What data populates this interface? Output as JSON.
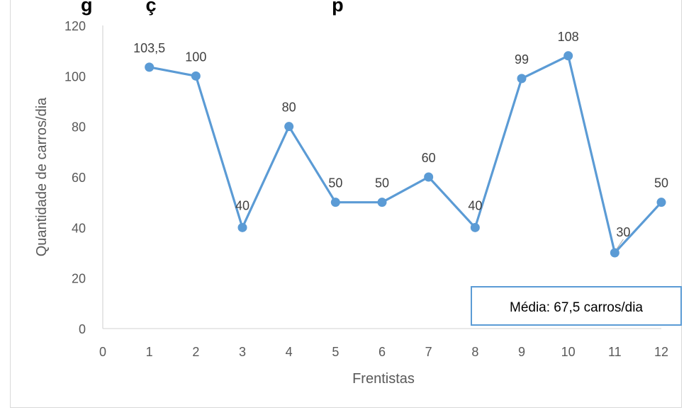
{
  "chart_data": {
    "type": "line",
    "title": "g          ç                                 p",
    "xlabel": "Frentistas",
    "ylabel": "Quantidade de carros/dia",
    "xlim": [
      0,
      12
    ],
    "ylim": [
      0,
      120
    ],
    "x_ticks": [
      "0",
      "1",
      "2",
      "3",
      "4",
      "5",
      "6",
      "7",
      "8",
      "9",
      "10",
      "11",
      "12"
    ],
    "y_ticks": [
      "0",
      "20",
      "40",
      "60",
      "80",
      "100",
      "120"
    ],
    "grid": false,
    "legend": "none",
    "series": [
      {
        "color": "#5b9bd5",
        "x": [
          1,
          2,
          3,
          4,
          5,
          6,
          7,
          8,
          9,
          10,
          11,
          12
        ],
        "values": [
          103.5,
          100,
          40,
          80,
          50,
          50,
          60,
          40,
          99,
          108,
          30,
          50
        ],
        "labels": [
          "103,5",
          "100",
          "40",
          "80",
          "50",
          "50",
          "60",
          "40",
          "99",
          "108",
          "30",
          "50"
        ]
      }
    ],
    "annotation": {
      "text": "Média: 67,5 carros/dia",
      "border_color": "#5b9bd5"
    }
  }
}
